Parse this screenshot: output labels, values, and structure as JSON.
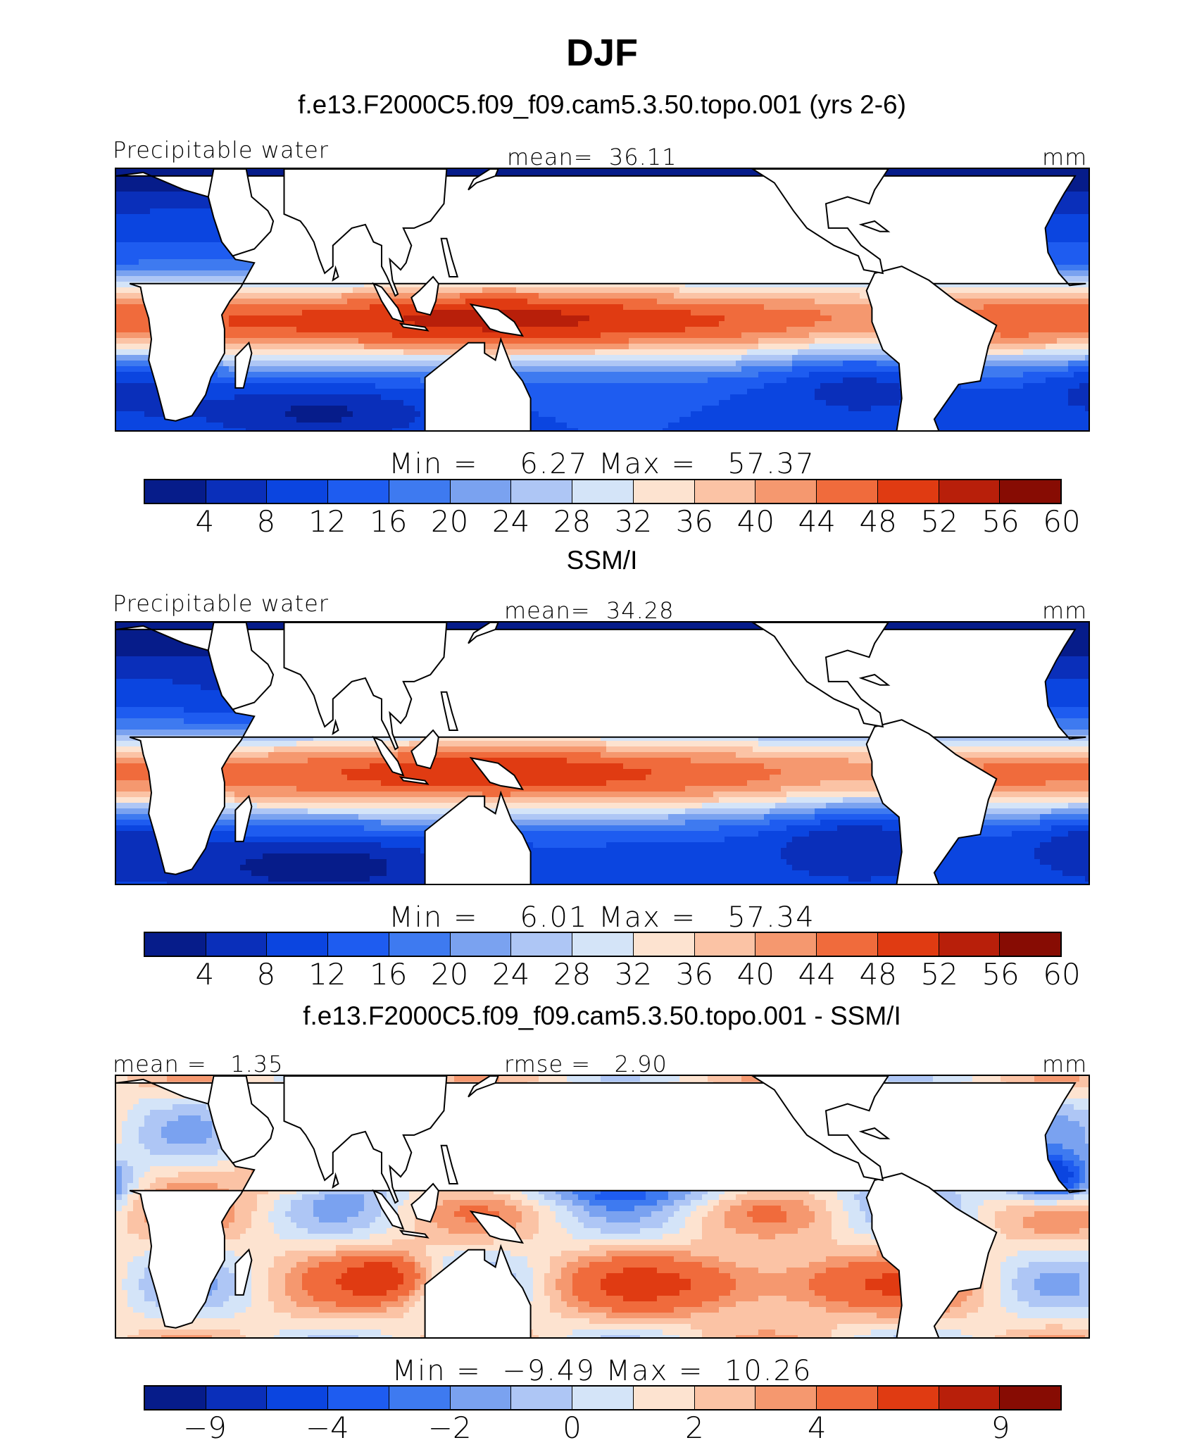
{
  "title": "DJF",
  "panels": [
    {
      "title": "f.e13.F2000C5.f09_f09.cam5.3.50.topo.001 (yrs 2-6)",
      "left_label": "Precipitable water",
      "center_label": "mean=  36.11",
      "units": "mm",
      "minmax": "Min =    6.27 Max =   57.37",
      "ticks": [
        "4",
        "8",
        "12",
        "16",
        "20",
        "24",
        "28",
        "32",
        "36",
        "40",
        "44",
        "48",
        "52",
        "56",
        "60"
      ],
      "colors": [
        "#061c8a",
        "#0a2fba",
        "#0b45e0",
        "#1e5cf0",
        "#3e7af0",
        "#7aa2f0",
        "#aec6f5",
        "#d4e4f8",
        "#fde3d0",
        "#fbc3a5",
        "#f5986f",
        "#f06b3c",
        "#e03b12",
        "#b81f0a",
        "#870c03"
      ],
      "field": "model"
    },
    {
      "title": "SSM/I",
      "left_label": "Precipitable water",
      "center_label": "mean=  34.28",
      "units": "mm",
      "minmax": "Min =    6.01 Max =   57.34",
      "ticks": [
        "4",
        "8",
        "12",
        "16",
        "20",
        "24",
        "28",
        "32",
        "36",
        "40",
        "44",
        "48",
        "52",
        "56",
        "60"
      ],
      "colors": [
        "#061c8a",
        "#0a2fba",
        "#0b45e0",
        "#1e5cf0",
        "#3e7af0",
        "#7aa2f0",
        "#aec6f5",
        "#d4e4f8",
        "#fde3d0",
        "#fbc3a5",
        "#f5986f",
        "#f06b3c",
        "#e03b12",
        "#b81f0a",
        "#870c03"
      ],
      "field": "obs"
    },
    {
      "title": "f.e13.F2000C5.f09_f09.cam5.3.50.topo.001 - SSM/I",
      "left_label": "mean =   1.35",
      "center_label": "rmse =   2.90",
      "units": "mm",
      "minmax": "Min =  −9.49 Max =  10.26",
      "ticks": [
        "−9",
        "−4",
        "−2",
        "0",
        "2",
        "4",
        "9"
      ],
      "colors": [
        "#061c8a",
        "#0a2fba",
        "#0b45e0",
        "#1e5cf0",
        "#3e7af0",
        "#7aa2f0",
        "#aec6f5",
        "#d4e4f8",
        "#fde3d0",
        "#fbc3a5",
        "#f5986f",
        "#f06b3c",
        "#e03b12",
        "#b81f0a",
        "#870c03"
      ],
      "field": "diff"
    }
  ]
}
